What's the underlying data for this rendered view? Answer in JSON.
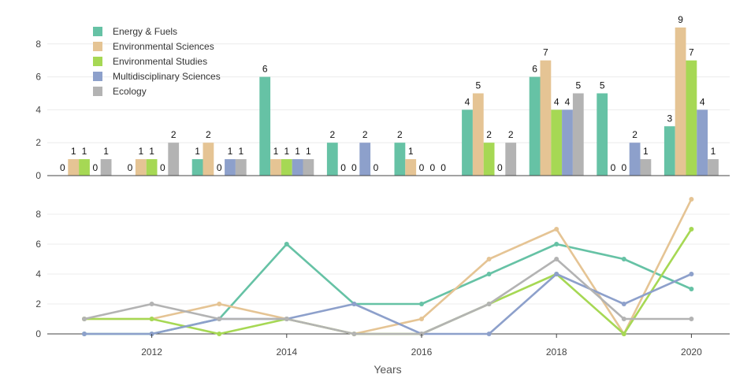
{
  "chart_data": {
    "type": "bar",
    "x": [
      2011,
      2012,
      2013,
      2014,
      2015,
      2016,
      2017,
      2018,
      2019,
      2020
    ],
    "x_ticks": [
      2012,
      2014,
      2016,
      2018,
      2020
    ],
    "xlabel": "Years",
    "ylim": [
      0,
      9.5
    ],
    "y_ticks": [
      0,
      2,
      4,
      6,
      8
    ],
    "grid": true,
    "legend_position": "top-left",
    "series": [
      {
        "name": "Energy & Fuels",
        "color": "#66c2a5",
        "values": [
          0,
          0,
          1,
          6,
          2,
          2,
          4,
          6,
          5,
          3
        ]
      },
      {
        "name": "Environmental Sciences",
        "color": "#e5c494",
        "values": [
          1,
          1,
          2,
          1,
          0,
          1,
          5,
          7,
          0,
          9
        ]
      },
      {
        "name": "Environmental Studies",
        "color": "#a6d854",
        "values": [
          1,
          1,
          0,
          1,
          0,
          0,
          2,
          4,
          0,
          7
        ]
      },
      {
        "name": "Multidisciplinary Sciences",
        "color": "#8da0cb",
        "values": [
          0,
          0,
          1,
          1,
          2,
          0,
          0,
          4,
          2,
          4
        ]
      },
      {
        "name": "Ecology",
        "color": "#b3b3b3",
        "values": [
          1,
          2,
          1,
          1,
          0,
          0,
          2,
          5,
          1,
          1
        ]
      }
    ]
  }
}
